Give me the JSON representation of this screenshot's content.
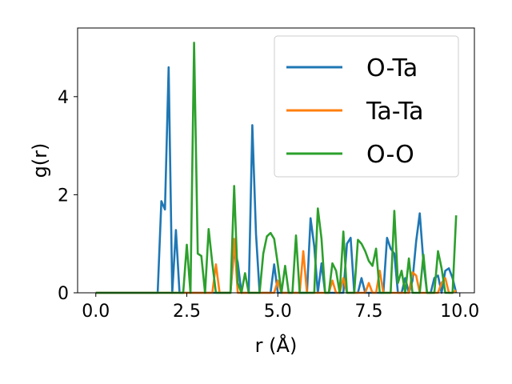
{
  "chart_data": {
    "type": "line",
    "xlabel": "r (Å)",
    "ylabel": "g(r)",
    "xlim": [
      -0.5,
      10.4
    ],
    "ylim": [
      0,
      5.4
    ],
    "xticks": [
      0.0,
      2.5,
      5.0,
      7.5,
      10.0
    ],
    "xtick_labels": [
      "0.0",
      "2.5",
      "5.0",
      "7.5",
      "10.0"
    ],
    "yticks": [
      0,
      2,
      4
    ],
    "ytick_labels": [
      "0",
      "2",
      "4"
    ],
    "grid": false,
    "legend": "top-right",
    "series": [
      {
        "name": "O-Ta",
        "color": "#1f77b4",
        "x": [
          0.0,
          1.7,
          1.8,
          1.9,
          2.0,
          2.1,
          2.2,
          2.3,
          2.4,
          2.5,
          3.6,
          3.7,
          3.8,
          3.9,
          4.0,
          4.1,
          4.2,
          4.3,
          4.4,
          4.5,
          4.6,
          4.7,
          4.8,
          4.9,
          5.0,
          5.1,
          5.2,
          5.3,
          5.4,
          5.5,
          5.6,
          5.7,
          5.8,
          5.9,
          6.0,
          6.1,
          6.2,
          6.3,
          6.4,
          6.5,
          6.6,
          6.7,
          6.8,
          6.9,
          7.0,
          7.1,
          7.2,
          7.3,
          7.4,
          7.5,
          7.6,
          7.7,
          7.8,
          7.9,
          8.0,
          8.1,
          8.2,
          8.3,
          8.4,
          8.5,
          8.6,
          8.7,
          8.8,
          8.9,
          9.0,
          9.1,
          9.2,
          9.3,
          9.4,
          9.5,
          9.6,
          9.7,
          9.8,
          9.9
        ],
        "y": [
          0.0,
          0.0,
          1.87,
          1.7,
          4.6,
          0.0,
          1.28,
          0.0,
          0.0,
          0.0,
          0.0,
          0.0,
          0.92,
          0.62,
          0.0,
          0.0,
          0.0,
          3.42,
          1.2,
          0.0,
          0.0,
          0.0,
          0.0,
          0.58,
          0.0,
          0.0,
          0.0,
          0.0,
          0.0,
          0.0,
          0.0,
          0.0,
          0.0,
          1.52,
          0.95,
          0.0,
          0.6,
          0.0,
          0.0,
          0.0,
          0.0,
          0.0,
          0.0,
          1.0,
          1.12,
          0.0,
          0.0,
          0.3,
          0.0,
          0.0,
          0.0,
          0.0,
          0.0,
          0.0,
          1.12,
          0.9,
          0.8,
          0.0,
          0.0,
          0.3,
          0.0,
          0.25,
          1.05,
          1.62,
          0.62,
          0.0,
          0.0,
          0.3,
          0.35,
          0.0,
          0.45,
          0.5,
          0.3,
          0.0
        ]
      },
      {
        "name": "Ta-Ta",
        "color": "#ff7f0e",
        "x": [
          0.0,
          3.1,
          3.2,
          3.3,
          3.4,
          3.5,
          3.6,
          3.7,
          3.8,
          3.9,
          4.0,
          4.9,
          5.0,
          5.1,
          5.2,
          5.3,
          5.4,
          5.5,
          5.6,
          5.7,
          5.8,
          5.9,
          6.0,
          6.1,
          6.2,
          6.3,
          6.4,
          6.5,
          6.6,
          6.7,
          6.8,
          6.9,
          7.0,
          7.1,
          7.2,
          7.3,
          7.4,
          7.5,
          7.6,
          7.7,
          7.8,
          7.9,
          8.0,
          8.5,
          8.6,
          8.7,
          8.8,
          8.9,
          9.0,
          9.1,
          9.2,
          9.3,
          9.4,
          9.5,
          9.6,
          9.7,
          9.8,
          9.9
        ],
        "y": [
          0.0,
          0.0,
          0.0,
          0.58,
          0.0,
          0.0,
          0.0,
          0.0,
          1.1,
          0.0,
          0.0,
          0.0,
          0.25,
          0.0,
          0.0,
          0.0,
          0.0,
          0.0,
          0.0,
          0.85,
          0.0,
          0.0,
          0.0,
          0.0,
          0.0,
          0.0,
          0.0,
          0.25,
          0.0,
          0.0,
          0.3,
          0.0,
          0.0,
          0.0,
          0.0,
          0.0,
          0.0,
          0.2,
          0.0,
          0.0,
          0.45,
          0.0,
          0.0,
          0.0,
          0.0,
          0.42,
          0.35,
          0.0,
          0.0,
          0.0,
          0.0,
          0.0,
          0.0,
          0.2,
          0.3,
          0.0,
          0.0,
          0.05
        ]
      },
      {
        "name": "O-O",
        "color": "#2ca02c",
        "x": [
          0.0,
          2.4,
          2.5,
          2.6,
          2.7,
          2.8,
          2.9,
          3.0,
          3.1,
          3.2,
          3.3,
          3.4,
          3.5,
          3.6,
          3.7,
          3.8,
          3.9,
          4.0,
          4.1,
          4.2,
          4.3,
          4.4,
          4.5,
          4.6,
          4.7,
          4.8,
          4.9,
          5.0,
          5.1,
          5.2,
          5.3,
          5.4,
          5.5,
          5.6,
          5.7,
          5.8,
          5.9,
          6.0,
          6.1,
          6.2,
          6.3,
          6.4,
          6.5,
          6.6,
          6.7,
          6.8,
          6.9,
          7.0,
          7.1,
          7.2,
          7.3,
          7.4,
          7.5,
          7.6,
          7.7,
          7.8,
          7.9,
          8.0,
          8.1,
          8.2,
          8.3,
          8.4,
          8.5,
          8.6,
          8.7,
          8.8,
          8.9,
          9.0,
          9.1,
          9.2,
          9.3,
          9.4,
          9.5,
          9.6,
          9.7,
          9.8,
          9.9
        ],
        "y": [
          0.0,
          0.0,
          0.98,
          0.0,
          5.1,
          0.8,
          0.75,
          0.0,
          1.3,
          0.6,
          0.0,
          0.0,
          0.0,
          0.0,
          0.0,
          2.18,
          0.2,
          0.0,
          0.4,
          0.0,
          0.0,
          0.0,
          0.0,
          0.8,
          1.15,
          1.22,
          1.1,
          0.58,
          0.0,
          0.55,
          0.0,
          0.0,
          1.17,
          0.0,
          0.0,
          0.0,
          0.0,
          0.0,
          1.72,
          1.1,
          0.0,
          0.0,
          0.6,
          0.45,
          0.0,
          1.25,
          0.0,
          0.0,
          0.0,
          1.08,
          1.0,
          0.85,
          0.65,
          0.55,
          0.9,
          0.0,
          0.0,
          0.0,
          0.0,
          1.67,
          0.2,
          0.45,
          0.0,
          0.7,
          0.0,
          0.0,
          0.0,
          0.78,
          0.0,
          0.0,
          0.0,
          0.85,
          0.5,
          0.0,
          0.0,
          0.0,
          1.58
        ]
      }
    ]
  }
}
